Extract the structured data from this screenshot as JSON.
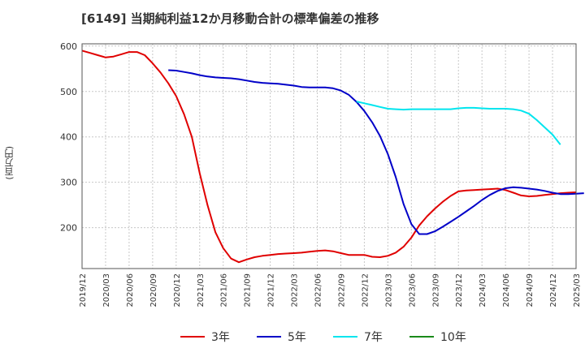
{
  "title": "[6149]  当期純利益12か月移動合計の標準偏差の推移",
  "chart_data": {
    "type": "line",
    "title": "[6149]  当期純利益12か月移動合計の標準偏差の推移",
    "ylabel": "(百万円)",
    "xlabel": "",
    "ylim": [
      110,
      605
    ],
    "yticks": [
      200,
      300,
      400,
      500,
      600
    ],
    "x_start": "2019-12",
    "x_end": "2025-03",
    "xticks": [
      "2019/12",
      "2020/03",
      "2020/06",
      "2020/09",
      "2020/12",
      "2021/03",
      "2021/06",
      "2021/09",
      "2021/12",
      "2022/03",
      "2022/06",
      "2022/09",
      "2022/12",
      "2023/03",
      "2023/06",
      "2023/09",
      "2023/12",
      "2024/03",
      "2024/06",
      "2024/09",
      "2024/12",
      "2025/03"
    ],
    "grid": true,
    "series": [
      {
        "name": "3年",
        "color": "#e00000",
        "start": "2019-12",
        "values": [
          590,
          585,
          580,
          575,
          577,
          582,
          587,
          587,
          580,
          562,
          542,
          518,
          490,
          450,
          400,
          320,
          250,
          190,
          155,
          132,
          124,
          130,
          135,
          138,
          140,
          142,
          143,
          144,
          145,
          147,
          149,
          150,
          148,
          144,
          140,
          140,
          140,
          136,
          135,
          138,
          145,
          158,
          178,
          205,
          225,
          242,
          257,
          270,
          280,
          282,
          283,
          284,
          285,
          286,
          283,
          277,
          271,
          269,
          270,
          272,
          274,
          276,
          277,
          278
        ]
      },
      {
        "name": "5年",
        "color": "#0000c8",
        "start": "2020-11",
        "values": [
          547,
          546,
          543,
          540,
          536,
          533,
          531,
          530,
          529,
          527,
          524,
          521,
          519,
          518,
          517,
          515,
          513,
          510,
          509,
          509,
          509,
          507,
          502,
          493,
          477,
          457,
          432,
          402,
          362,
          312,
          252,
          208,
          186,
          186,
          192,
          202,
          213,
          224,
          236,
          248,
          261,
          272,
          281,
          287,
          289,
          288,
          286,
          284,
          281,
          277,
          274,
          274,
          275,
          276
        ]
      },
      {
        "name": "7年",
        "color": "#00e5ee",
        "start": "2022-11",
        "values": [
          478,
          474,
          470,
          466,
          462,
          461,
          460,
          461,
          461,
          461,
          461,
          461,
          461,
          463,
          464,
          464,
          463,
          462,
          462,
          462,
          461,
          458,
          451,
          437,
          421,
          405,
          383
        ]
      },
      {
        "name": "10年",
        "color": "#1a8a1a",
        "start": "2024-12",
        "values": []
      }
    ],
    "legend_position": "bottom"
  }
}
